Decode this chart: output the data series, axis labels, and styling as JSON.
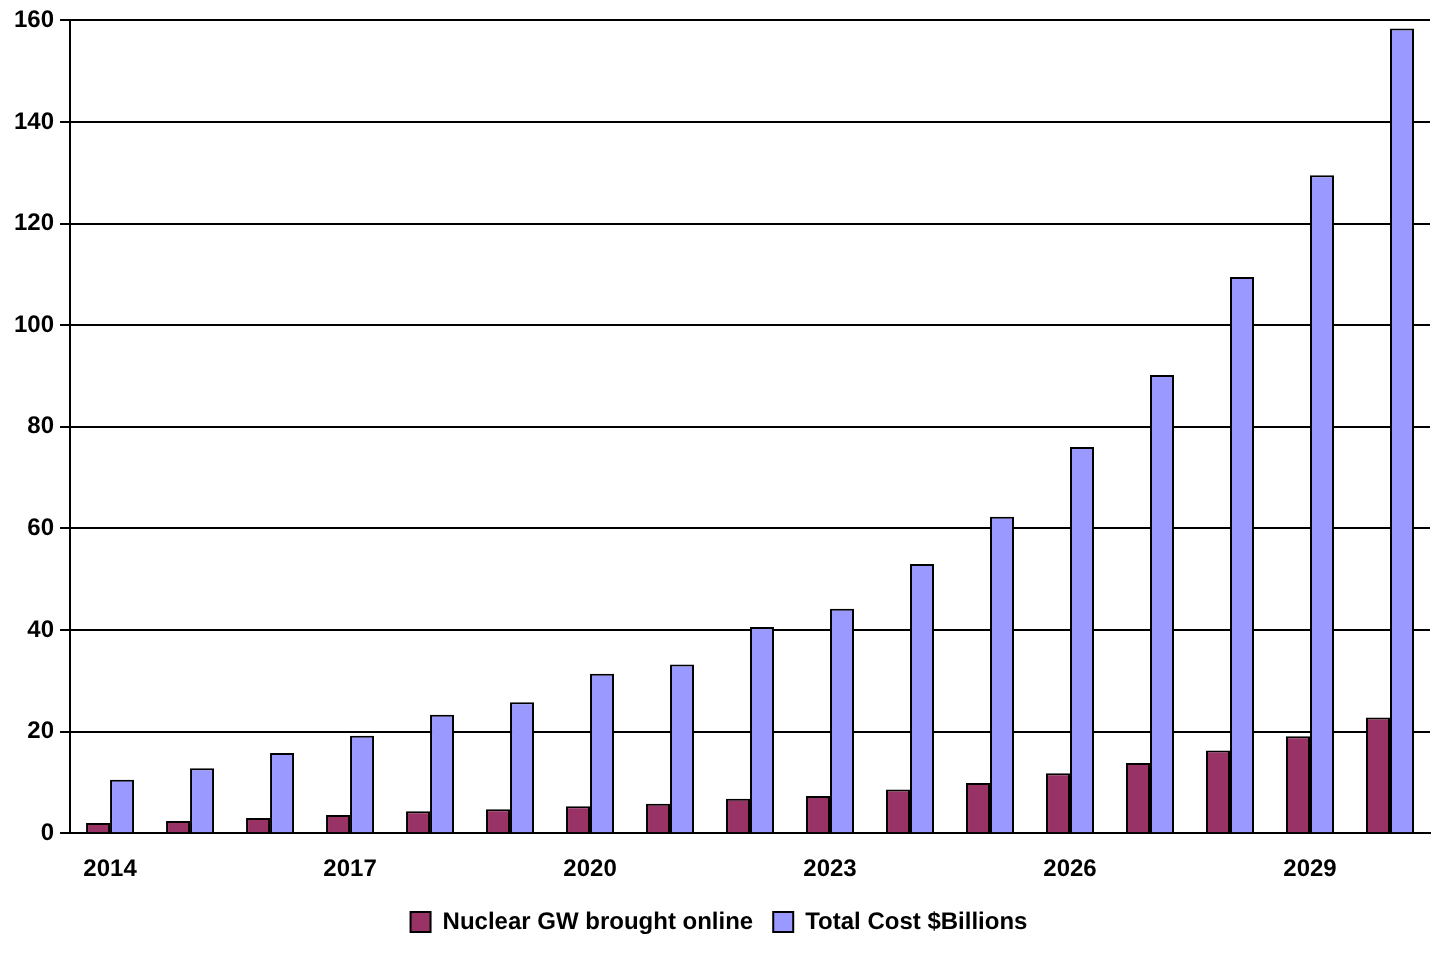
{
  "chart_data": {
    "type": "bar",
    "categories": [
      "2014",
      null,
      null,
      "2017",
      null,
      null,
      "2020",
      null,
      null,
      "2023",
      null,
      null,
      "2026",
      null,
      null,
      "2029",
      null
    ],
    "series": [
      {
        "name": "Nuclear GW brought online",
        "color": "#993366",
        "values": [
          2,
          2.4,
          3,
          3.6,
          4.3,
          4.7,
          5.3,
          5.8,
          6.8,
          7.3,
          8.6,
          9.9,
          11.8,
          13.8,
          16.3,
          19.1,
          22.8
        ]
      },
      {
        "name": "Total Cost $Billions",
        "color": "#9999ff",
        "values": [
          10.5,
          12.8,
          15.8,
          19.2,
          23.3,
          25.8,
          31.4,
          33.2,
          40.6,
          44.2,
          53,
          62.3,
          76,
          90.2,
          109.5,
          129.5,
          158.4
        ]
      }
    ],
    "ylim": [
      0,
      160
    ],
    "yticks": [
      0,
      20,
      40,
      60,
      80,
      100,
      120,
      140,
      160
    ],
    "grid": "y",
    "legend": "bottom"
  }
}
